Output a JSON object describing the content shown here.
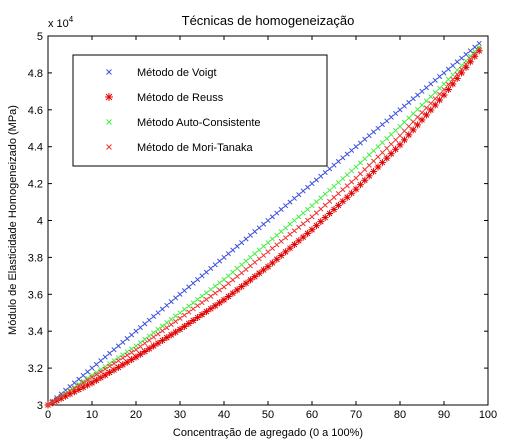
{
  "chart_data": {
    "type": "scatter",
    "title": "Técnicas de homogeneização",
    "xlabel": "Concentração de agregado (0 a 100%)",
    "ylabel": "Módulo de Elasticidade Homogeneizado (MPa)",
    "y_exponent_label": "x 10",
    "y_exponent_power": "4",
    "xlim": [
      0,
      100
    ],
    "ylim": [
      3.0,
      5.0
    ],
    "x_ticks": [
      0,
      10,
      20,
      30,
      40,
      50,
      60,
      70,
      80,
      90,
      100
    ],
    "x_tick_labels": [
      "0",
      "10",
      "20",
      "30",
      "40",
      "50",
      "60",
      "70",
      "80",
      "90",
      "100"
    ],
    "y_ticks": [
      3.0,
      3.2,
      3.4,
      3.6,
      3.8,
      4.0,
      4.2,
      4.4,
      4.6,
      4.8,
      5.0
    ],
    "y_tick_labels": [
      "3",
      "3.2",
      "3.4",
      "3.6",
      "3.8",
      "4",
      "4.2",
      "4.4",
      "4.6",
      "4.8",
      "5"
    ],
    "grid": false,
    "legend_position": "top-left",
    "x": [
      0,
      10,
      20,
      30,
      40,
      50,
      60,
      70,
      80,
      90,
      98
    ],
    "series": [
      {
        "name": "Método de Voigt",
        "color": "#3b4fe0",
        "marker": "x",
        "values": [
          3.0,
          3.2,
          3.4,
          3.6,
          3.8,
          4.0,
          4.2,
          4.4,
          4.6,
          4.8,
          4.96
        ]
      },
      {
        "name": "Método de Reuss",
        "color": "#e00000",
        "marker": "asterisk",
        "values": [
          3.0,
          3.12,
          3.26,
          3.41,
          3.57,
          3.75,
          3.95,
          4.17,
          4.41,
          4.68,
          4.92
        ]
      },
      {
        "name": "Método Auto-Consistente",
        "color": "#44ee44",
        "marker": "x",
        "values": [
          3.0,
          3.16,
          3.32,
          3.5,
          3.68,
          3.88,
          4.08,
          4.29,
          4.51,
          4.74,
          4.94
        ]
      },
      {
        "name": "Método de Mori-Tanaka",
        "color": "#f03030",
        "marker": "x",
        "values": [
          3.0,
          3.15,
          3.3,
          3.47,
          3.64,
          3.83,
          4.02,
          4.23,
          4.46,
          4.71,
          4.93
        ]
      }
    ]
  }
}
